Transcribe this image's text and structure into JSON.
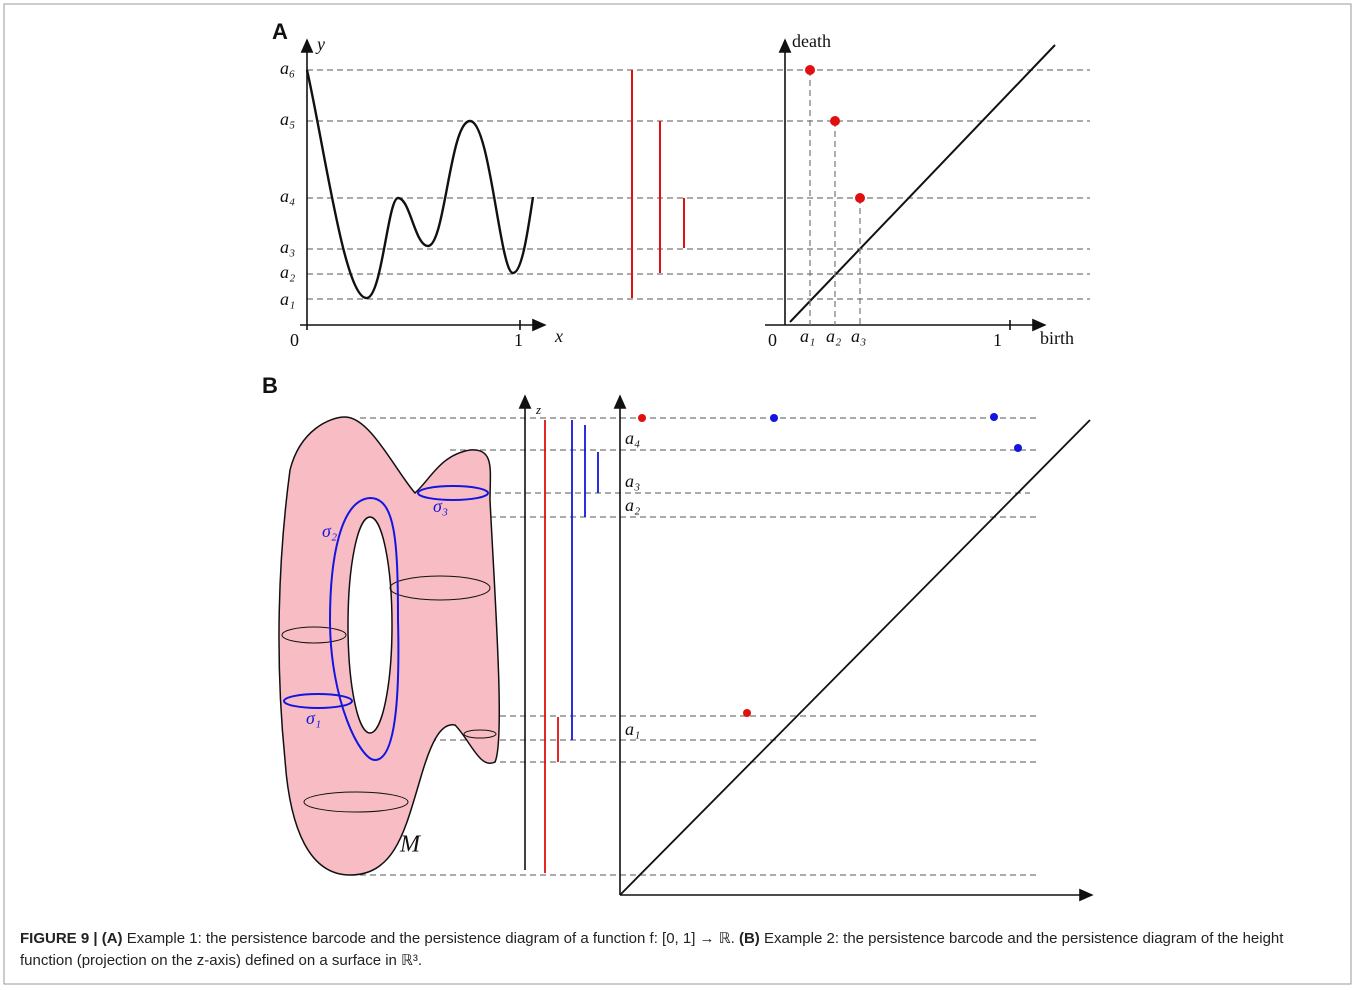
{
  "panel_a": {
    "label": "A",
    "function_plot": {
      "y_label": "y",
      "x_label": "x",
      "origin": "0",
      "x_tick": "1",
      "levels": [
        "a₆",
        "a₅",
        "a₄",
        "a₃",
        "a₂",
        "a₁"
      ]
    },
    "diagram": {
      "y_label": "death",
      "x_label": "birth",
      "origin": "0",
      "x_tick": "1",
      "births": [
        "a₁",
        "a₂",
        "a₃"
      ]
    }
  },
  "panel_b": {
    "label": "B",
    "axis_label": "z",
    "levels": [
      "a₄",
      "a₃",
      "a₂",
      "a₁"
    ],
    "cycles": [
      "σ₂",
      "σ₃",
      "σ₁"
    ],
    "surface_label": "M"
  },
  "caption": {
    "figure": "FIGURE 9 |",
    "a_tag": "(A)",
    "a_text": "Example 1: the persistence barcode and the persistence diagram of a function f: [0, 1] → ℝ.",
    "b_tag": "(B)",
    "b_text": "Example 2: the persistence barcode and the persistence diagram of the height function (projection on the z-axis) defined on a surface in ℝ³."
  }
}
